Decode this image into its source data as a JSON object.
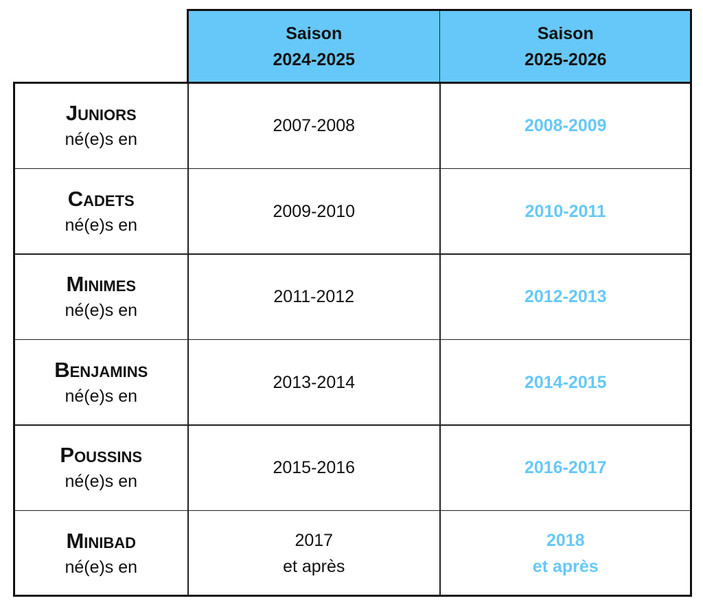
{
  "table": {
    "header": [
      [
        "Saison",
        "2024-2025"
      ],
      [
        "Saison",
        "2025-2026"
      ]
    ],
    "rows": [
      {
        "category": "Juniors",
        "note": "né(e)s en",
        "cells": [
          [
            "2007-2008"
          ],
          [
            "2008-2009"
          ]
        ]
      },
      {
        "category": "Cadets",
        "note": "né(e)s en",
        "cells": [
          [
            "2009-2010"
          ],
          [
            "2010-2011"
          ]
        ]
      },
      {
        "category": "Minimes",
        "note": "né(e)s en",
        "cells": [
          [
            "2011-2012"
          ],
          [
            "2012-2013"
          ]
        ]
      },
      {
        "category": "Benjamins",
        "note": "né(e)s en",
        "cells": [
          [
            "2013-2014"
          ],
          [
            "2014-2015"
          ]
        ]
      },
      {
        "category": "Poussins",
        "note": "né(e)s en",
        "cells": [
          [
            "2015-2016"
          ],
          [
            "2016-2017"
          ]
        ]
      },
      {
        "category": "Minibad",
        "note": "né(e)s en",
        "cells": [
          [
            "2017",
            "et après"
          ],
          [
            "2018",
            "et après"
          ]
        ]
      }
    ]
  }
}
